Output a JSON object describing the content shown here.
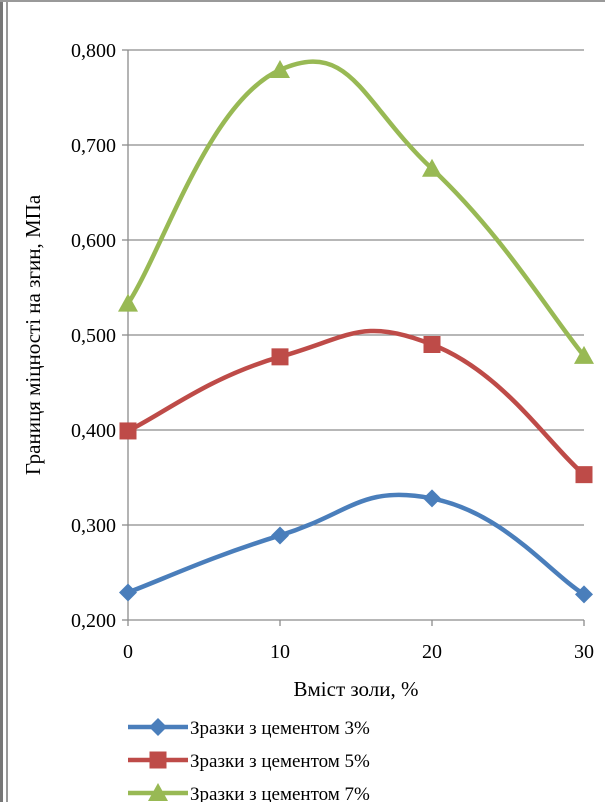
{
  "chart_data": {
    "type": "line",
    "title": "",
    "xlabel": "Вміст золи, %",
    "ylabel": "Границя міцності на згин, МПа",
    "x": [
      0,
      10,
      20,
      30
    ],
    "x_tick_labels": [
      "0",
      "10",
      "20",
      "30"
    ],
    "y_tick_labels": [
      "0,200",
      "0,300",
      "0,400",
      "0,500",
      "0,600",
      "0,700",
      "0,800"
    ],
    "y_ticks": [
      0.2,
      0.3,
      0.4,
      0.5,
      0.6,
      0.7,
      0.8
    ],
    "xlim": [
      0,
      30
    ],
    "ylim": [
      0.2,
      0.8
    ],
    "grid": "horizontal",
    "legend_position": "bottom",
    "smooth": true,
    "series": [
      {
        "name": "Зразки з цементом 3%",
        "color": "#4a7ebb",
        "marker": "diamond",
        "values": [
          0.229,
          0.289,
          0.328,
          0.227
        ]
      },
      {
        "name": "Зразки з цементом 5%",
        "color": "#be4b48",
        "marker": "square",
        "values": [
          0.399,
          0.477,
          0.49,
          0.353
        ]
      },
      {
        "name": "Зразки з цементом 7%",
        "color": "#98b954",
        "marker": "triangle",
        "values": [
          0.533,
          0.779,
          0.675,
          0.478
        ]
      }
    ]
  }
}
